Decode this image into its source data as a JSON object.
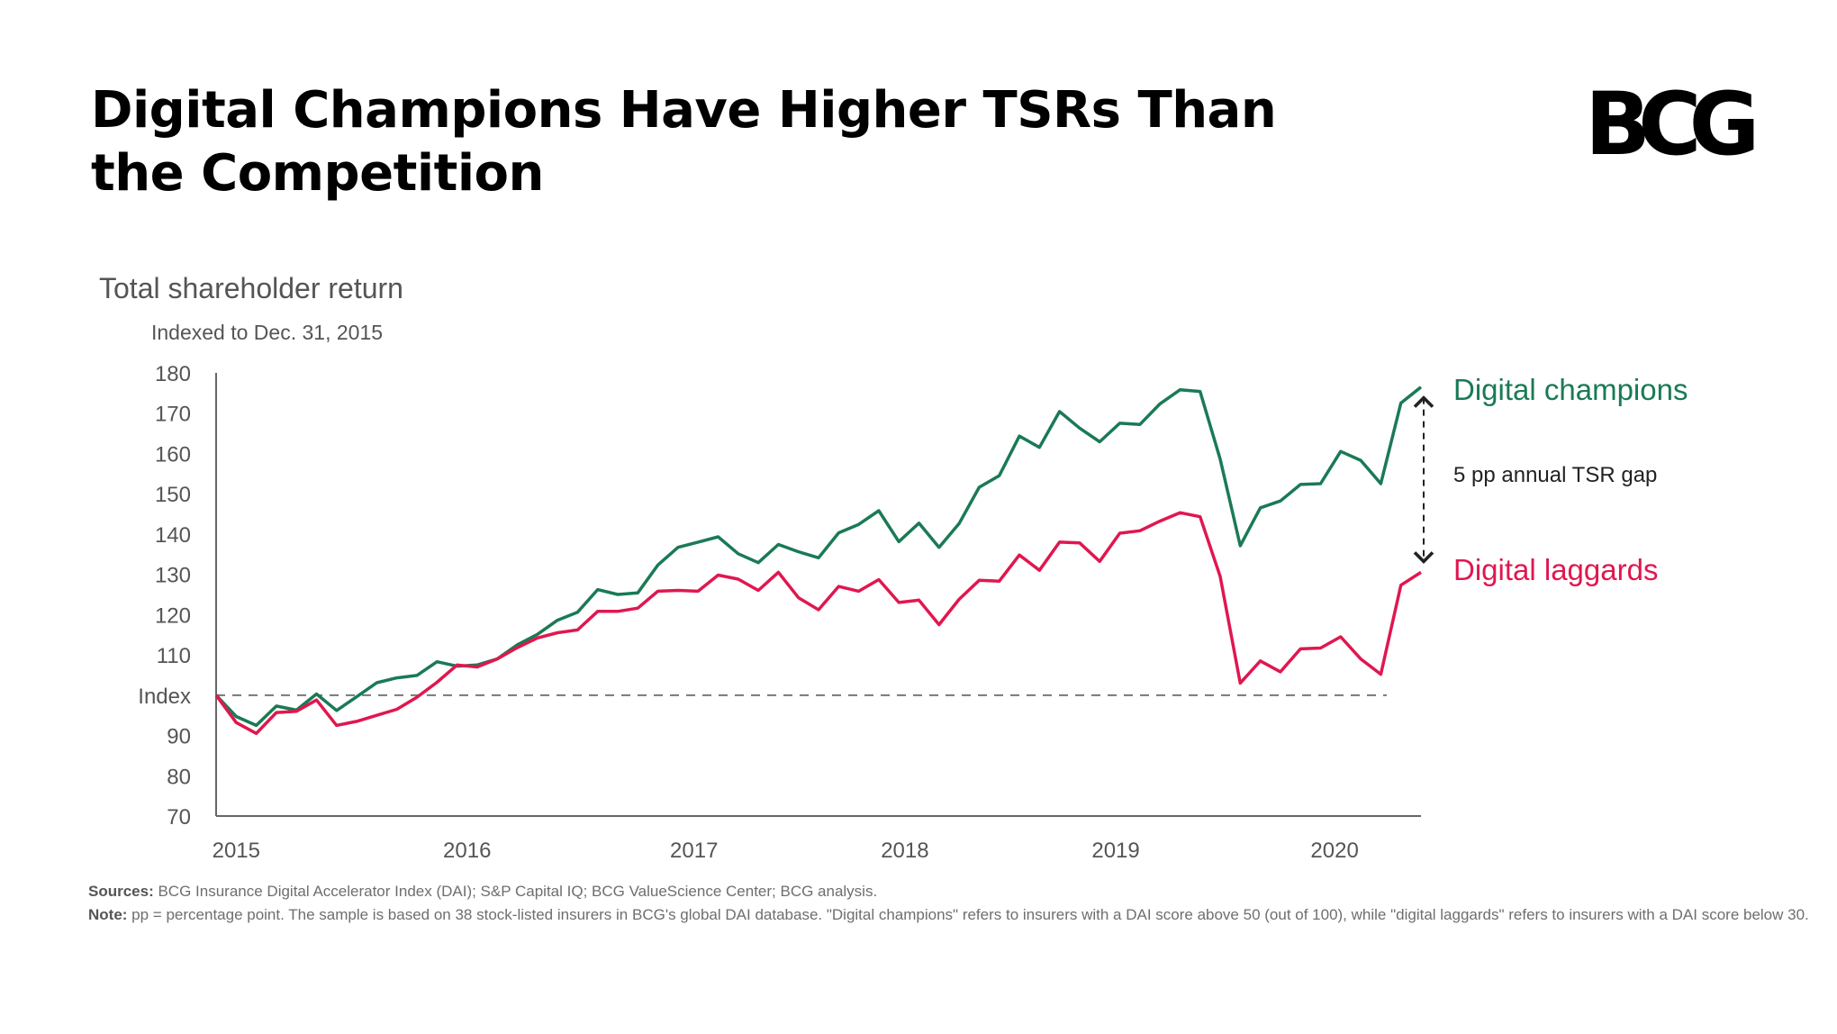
{
  "title": "Digital Champions Have Higher TSRs Than the Competition",
  "logo": "BCG",
  "colors": {
    "champions": "#1a7a55",
    "laggards": "#e0174f",
    "axis": "#666666",
    "text_gray": "#555555"
  },
  "chart_data": {
    "type": "line",
    "title": "Total shareholder return",
    "subtitle": "Indexed to Dec. 31, 2015",
    "ylim": [
      70,
      180
    ],
    "yticks": [
      {
        "value": 180,
        "label": "180"
      },
      {
        "value": 170,
        "label": "170"
      },
      {
        "value": 160,
        "label": "160"
      },
      {
        "value": 150,
        "label": "150"
      },
      {
        "value": 140,
        "label": "140"
      },
      {
        "value": 130,
        "label": "130"
      },
      {
        "value": 120,
        "label": "120"
      },
      {
        "value": 110,
        "label": "110"
      },
      {
        "value": 100,
        "label": "Index"
      },
      {
        "value": 90,
        "label": "90"
      },
      {
        "value": 80,
        "label": "80"
      },
      {
        "value": 70,
        "label": "70"
      }
    ],
    "xlim": [
      0,
      60
    ],
    "xticks": [
      {
        "value": 1.0,
        "label": "2015"
      },
      {
        "value": 12.5,
        "label": "2016"
      },
      {
        "value": 23.8,
        "label": "2017"
      },
      {
        "value": 34.3,
        "label": "2018"
      },
      {
        "value": 44.8,
        "label": "2019"
      },
      {
        "value": 55.7,
        "label": "2020"
      }
    ],
    "reference_line": {
      "value": 100
    },
    "series": [
      {
        "name": "Digital champions",
        "key": "champions",
        "values": [
          100,
          94.7,
          92.5,
          97.3,
          96.3,
          100.3,
          96.2,
          99.6,
          103.1,
          104.3,
          104.9,
          108.3,
          107.2,
          107.5,
          109.0,
          112.5,
          115.1,
          118.6,
          120.6,
          126.2,
          125.0,
          125.4,
          132.3,
          136.7,
          138.0,
          139.3,
          135.1,
          132.9,
          137.4,
          135.6,
          134.1,
          140.3,
          142.4,
          145.8,
          138.1,
          142.7,
          136.7,
          142.6,
          151.6,
          154.5,
          164.3,
          161.5,
          170.4,
          166.3,
          162.9,
          167.5,
          167.2,
          172.3,
          175.8,
          175.4,
          158.6,
          137.1,
          146.5,
          148.2,
          152.3,
          152.5,
          160.5,
          158.3,
          152.5,
          172.5,
          176.5
        ]
      },
      {
        "name": "Digital laggards",
        "key": "laggards",
        "values": [
          100,
          93.2,
          90.5,
          95.7,
          96.0,
          98.8,
          92.5,
          93.5,
          95.0,
          96.5,
          99.5,
          103.2,
          107.5,
          107.0,
          109.0,
          111.8,
          114.2,
          115.5,
          116.2,
          120.8,
          120.8,
          121.6,
          125.8,
          126.0,
          125.8,
          129.8,
          128.8,
          126.0,
          130.5,
          124.2,
          121.2,
          127.0,
          125.8,
          128.7,
          123.0,
          123.6,
          117.5,
          123.8,
          128.5,
          128.3,
          134.8,
          131.0,
          138.0,
          137.8,
          133.2,
          140.2,
          140.8,
          143.2,
          145.3,
          144.3,
          129.5,
          103.0,
          108.5,
          105.8,
          111.5,
          111.7,
          114.5,
          109.0,
          105.2,
          127.3,
          130.5
        ]
      }
    ],
    "legend": [
      {
        "key": "champions",
        "label": "Digital champions"
      },
      {
        "key": "laggards",
        "label": "Digital laggards"
      }
    ],
    "gap_annotation": "5 pp annual TSR gap"
  },
  "footnotes": {
    "sources_label": "Sources:",
    "sources_text": " BCG Insurance Digital Accelerator Index (DAI); S&P Capital IQ; BCG ValueScience Center; BCG analysis.",
    "note_label": "Note:",
    "note_text": " pp = percentage point. The sample is based on 38 stock-listed insurers in BCG's global DAI database. \"Digital champions\" refers to insurers with a DAI score above 50 (out of 100), while \"digital laggards\" refers to insurers with a DAI score below 30."
  }
}
